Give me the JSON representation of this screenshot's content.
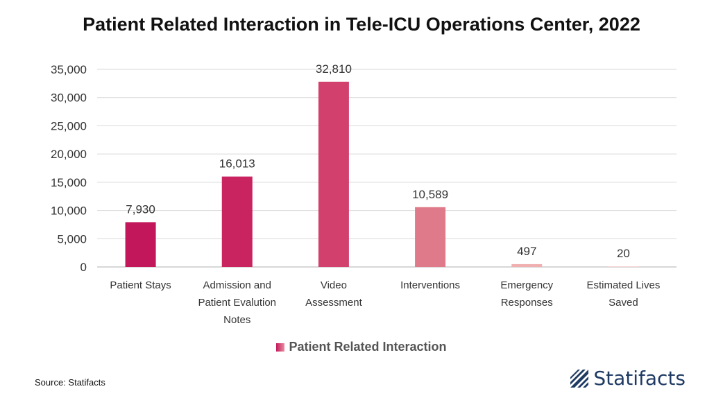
{
  "chart_data": {
    "type": "bar",
    "title": "Patient Related Interaction in Tele-ICU Operations Center, 2022",
    "categories": [
      [
        "Patient Stays"
      ],
      [
        "Admission and",
        "Patient Evalution",
        "Notes"
      ],
      [
        "Video",
        "Assessment"
      ],
      [
        "Interventions"
      ],
      [
        "Emergency",
        "Responses"
      ],
      [
        "Estimated Lives",
        "Saved"
      ]
    ],
    "series": [
      {
        "name": "Patient Related Interaction",
        "values": [
          7930,
          16013,
          32810,
          10589,
          497,
          20
        ],
        "labels": [
          "7,930",
          "16,013",
          "32,810",
          "10,589",
          "497",
          "20"
        ],
        "colors": [
          "#c2185b",
          "#c9245f",
          "#d2416e",
          "#df7a8a",
          "#f0b0b0",
          "#f7d4d4"
        ]
      }
    ],
    "yticks": [
      "0",
      "5,000",
      "10,000",
      "15,000",
      "20,000",
      "25,000",
      "30,000",
      "35,000"
    ],
    "ylim": [
      0,
      35000
    ],
    "xlabel": "",
    "ylabel": "",
    "grid": true,
    "legend_position": "bottom"
  },
  "footer": {
    "source": "Source: Statifacts",
    "brand": "Statifacts",
    "brand_logo_icon": "statifacts-logo-icon"
  }
}
